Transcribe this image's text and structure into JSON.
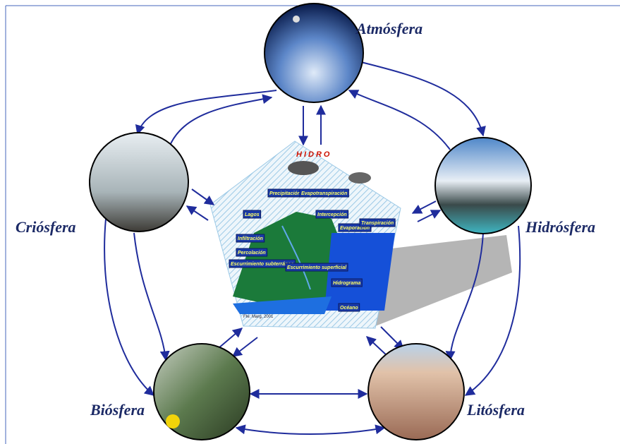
{
  "spheres": [
    {
      "label": "Atmósfera"
    },
    {
      "label": "Criósfera"
    },
    {
      "label": "Hidrósfera"
    },
    {
      "label": "Biósfera"
    },
    {
      "label": "Litósfera"
    }
  ],
  "center": {
    "title": "HIDRO",
    "labels": [
      "Precipitación",
      "Evapotranspiración",
      "Lagos",
      "Intercepción",
      "Evaporación",
      "Transpiración",
      "Infiltración",
      "Percolación",
      "Escurrimiento subterráneo",
      "Escurrimiento superficial",
      "Hidrograma",
      "Océano"
    ],
    "source": "Fte: Marg, 2001"
  }
}
